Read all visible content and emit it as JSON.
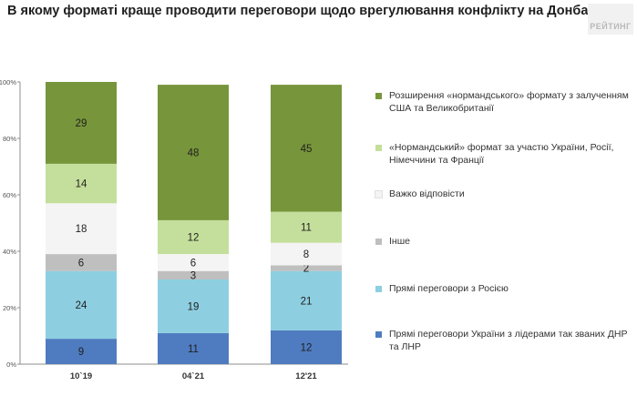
{
  "header": {
    "title": "В якому форматі краще проводити переговори щодо врегулювання конфлікту на Донбасі?",
    "brand": "РЕЙТИНГ"
  },
  "chart_data": {
    "type": "bar",
    "stacked": true,
    "categories": [
      "10`19",
      "04`21",
      "12'21"
    ],
    "yticks": [
      "0%",
      "20%",
      "40%",
      "60%",
      "80%",
      "100%"
    ],
    "ylim": [
      0,
      100
    ],
    "legend_position": "right",
    "series": [
      {
        "name": "Прямі переговори України з лідерами так званих ДНР та ЛНР",
        "color": "#4f7cc1",
        "values": [
          9,
          11,
          12
        ],
        "labels": [
          "9",
          "11",
          "12"
        ]
      },
      {
        "name": "Прямі переговори з Росією",
        "color": "#8dcfe1",
        "values": [
          24,
          19,
          21
        ],
        "labels": [
          "24",
          "19",
          "21"
        ]
      },
      {
        "name": "Інше",
        "color": "#bfbfbf",
        "values": [
          6,
          3,
          2
        ],
        "labels": [
          "6",
          "3",
          "2"
        ]
      },
      {
        "name": "Важко відповісти",
        "color": "#f4f4f4",
        "values": [
          18,
          6,
          8
        ],
        "labels": [
          "18",
          "6",
          "8"
        ]
      },
      {
        "name": "«Нормандський» формат за участю України, Росії, Німеччини та Франції",
        "color": "#c4df9b",
        "values": [
          14,
          12,
          11
        ],
        "labels": [
          "14",
          "12",
          "11"
        ]
      },
      {
        "name": "Розширення «нормандського» формату з залученням США та Великобританії",
        "color": "#77953a",
        "values": [
          29,
          48,
          45
        ],
        "labels": [
          "29",
          "48",
          "45"
        ]
      }
    ]
  }
}
